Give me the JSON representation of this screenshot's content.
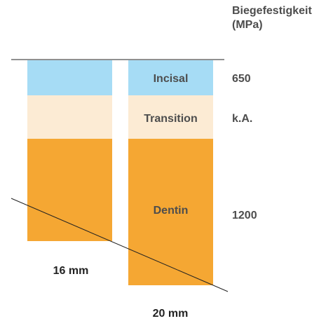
{
  "header": {
    "line1": "Biegefestigkeit",
    "line2": "(MPa)"
  },
  "zones": {
    "incisal": {
      "label": "Incisal",
      "color": "#a6dcf5",
      "value": "650"
    },
    "transition": {
      "label": "Transition",
      "color": "#fcebd4",
      "value": "k.A."
    },
    "dentin": {
      "label": "Dentin",
      "color": "#f5a733",
      "value": "1200"
    }
  },
  "blocks": {
    "short": {
      "label": "16 mm"
    },
    "long": {
      "label": "20 mm"
    }
  },
  "colors": {
    "label_text": "#4d4d4d",
    "zone_label_text": "#4d4d4d",
    "line": "#222222"
  }
}
